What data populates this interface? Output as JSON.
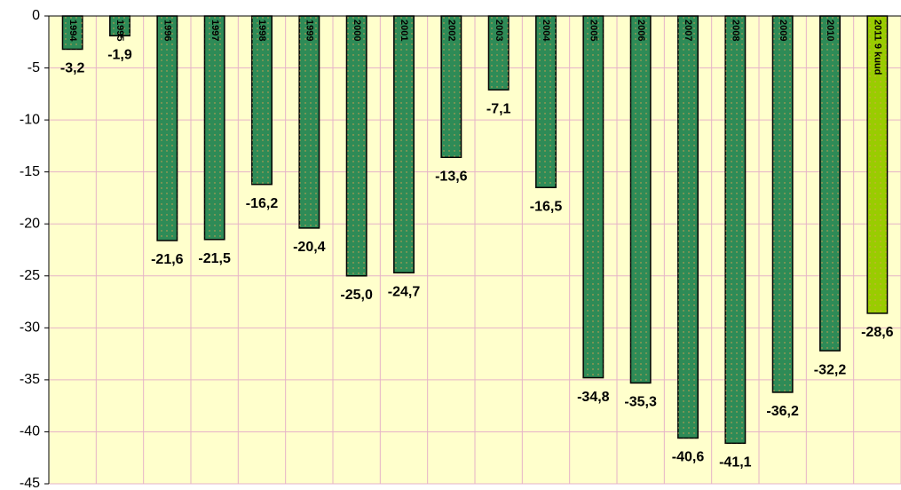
{
  "chart_data": {
    "type": "bar",
    "categories": [
      "1994",
      "1995",
      "1996",
      "1997",
      "1998",
      "1999",
      "2000",
      "2001",
      "2002",
      "2003",
      "2004",
      "2005",
      "2006",
      "2007",
      "2008",
      "2009",
      "2010",
      "2011 9 kuud"
    ],
    "values": [
      -3.2,
      -1.9,
      -21.6,
      -21.5,
      -16.2,
      -20.4,
      -25.0,
      -24.7,
      -13.6,
      -7.1,
      -16.5,
      -34.8,
      -35.3,
      -40.6,
      -41.1,
      -36.2,
      -32.2,
      -28.6
    ],
    "value_labels": [
      "-3,2",
      "-1,9",
      "-21,6",
      "-21,5",
      "-16,2",
      "-20,4",
      "-25,0",
      "-24,7",
      "-13,6",
      "-7,1",
      "-16,5",
      "-34,8",
      "-35,3",
      "-40,6",
      "-41,1",
      "-36,2",
      "-32,2",
      "-28,6"
    ],
    "colors": [
      "#2e8b57",
      "#2e8b57",
      "#2e8b57",
      "#2e8b57",
      "#2e8b57",
      "#2e8b57",
      "#2e8b57",
      "#2e8b57",
      "#2e8b57",
      "#2e8b57",
      "#2e8b57",
      "#2e8b57",
      "#2e8b57",
      "#2e8b57",
      "#2e8b57",
      "#2e8b57",
      "#2e8b57",
      "#99cc00"
    ],
    "ylim": [
      -45,
      0
    ],
    "yticks": [
      0,
      -5,
      -10,
      -15,
      -20,
      -25,
      -30,
      -35,
      -40,
      -45
    ],
    "grid": true
  }
}
